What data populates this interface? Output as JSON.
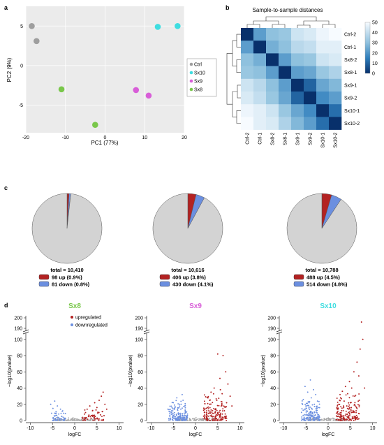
{
  "panel_labels": {
    "a": "a",
    "b": "b",
    "c": "c",
    "d": "d"
  },
  "chart_data": [
    {
      "id": "pca",
      "type": "scatter",
      "xlabel": "PC1 (77%)",
      "ylabel": "PC2 (9%)",
      "xlim": [
        -20,
        20
      ],
      "ylim": [
        -8.5,
        7.5
      ],
      "xticks": [
        "-20",
        "-10",
        "0",
        "10",
        "20"
      ],
      "yticks": [
        "-5",
        "0",
        "5"
      ],
      "xtick_values": [
        -20,
        -10,
        0,
        10,
        20
      ],
      "ytick_values": [
        -5,
        0,
        5
      ],
      "grid": true,
      "legend_position": "right",
      "series": [
        {
          "name": "Ctrl",
          "color": "#9e9e9e",
          "points": [
            [
              -18.5,
              5.0
            ],
            [
              -17.3,
              3.1
            ]
          ]
        },
        {
          "name": "Sx10",
          "color": "#3fdde0",
          "points": [
            [
              13.3,
              4.9
            ],
            [
              18.3,
              5.0
            ]
          ]
        },
        {
          "name": "Sx9",
          "color": "#d85ed8",
          "points": [
            [
              7.8,
              -3.1
            ],
            [
              11.0,
              -3.8
            ]
          ]
        },
        {
          "name": "Sx8",
          "color": "#79c74a",
          "points": [
            [
              -11.0,
              -3.0
            ],
            [
              -2.5,
              -7.5
            ]
          ]
        }
      ]
    },
    {
      "id": "heatmap",
      "type": "heatmap",
      "title": "Sample-to-sample distances",
      "row_labels": [
        "Ctrl-2",
        "Ctrl-1",
        "Sx8-2",
        "Sx8-1",
        "Sx9-1",
        "Sx9-2",
        "Sx10-1",
        "Sx10-2"
      ],
      "col_labels": [
        "Ctrl-2",
        "Ctrl-1",
        "Sx8-2",
        "Sx8-1",
        "Sx9-1",
        "Sx9-2",
        "Sx10-1",
        "Sx10-2"
      ],
      "colorbar_ticks": [
        "50",
        "40",
        "30",
        "20",
        "10",
        "0"
      ],
      "colorbar_range": [
        0,
        50
      ],
      "values": [
        [
          0,
          22,
          30,
          32,
          42,
          44,
          48,
          50
        ],
        [
          22,
          0,
          26,
          30,
          38,
          40,
          46,
          46
        ],
        [
          30,
          26,
          0,
          22,
          30,
          32,
          42,
          44
        ],
        [
          32,
          30,
          22,
          0,
          22,
          24,
          32,
          36
        ],
        [
          42,
          38,
          30,
          22,
          0,
          10,
          24,
          28
        ],
        [
          44,
          40,
          32,
          24,
          10,
          0,
          18,
          22
        ],
        [
          48,
          46,
          42,
          32,
          24,
          18,
          0,
          12
        ],
        [
          50,
          46,
          44,
          36,
          28,
          22,
          12,
          0
        ]
      ]
    },
    {
      "id": "pie-sx8",
      "type": "pie",
      "title": "Sx8",
      "title_color": "#79c74a",
      "slices": [
        {
          "name": "up",
          "value": 98,
          "color": "#b32222"
        },
        {
          "name": "down",
          "value": 81,
          "color": "#6b8fe0"
        },
        {
          "name": "unchanged",
          "value": 10231,
          "color": "#d3d3d3"
        }
      ],
      "total_label": "total = 10,410",
      "up_label": "98 up (0.9%)",
      "down_label": "81 down (0.8%)"
    },
    {
      "id": "pie-sx9",
      "type": "pie",
      "title": "Sx9",
      "title_color": "#d85ed8",
      "slices": [
        {
          "name": "up",
          "value": 406,
          "color": "#b32222"
        },
        {
          "name": "down",
          "value": 430,
          "color": "#6b8fe0"
        },
        {
          "name": "unchanged",
          "value": 9780,
          "color": "#d3d3d3"
        }
      ],
      "total_label": "total = 10,616",
      "up_label": "406 up (3.8%)",
      "down_label": "430 down (4.1%)"
    },
    {
      "id": "pie-sx10",
      "type": "pie",
      "title": "Sx10",
      "title_color": "#3fdde0",
      "slices": [
        {
          "name": "up",
          "value": 488,
          "color": "#b32222"
        },
        {
          "name": "down",
          "value": 514,
          "color": "#6b8fe0"
        },
        {
          "name": "unchanged",
          "value": 9786,
          "color": "#d3d3d3"
        }
      ],
      "total_label": "total = 10,788",
      "up_label": "488 up (4.5%)",
      "down_label": "514 down (4.8%)"
    },
    {
      "id": "volcano-sx8",
      "type": "scatter",
      "title": "Sx8",
      "title_color": "#79c74a",
      "xlabel": "logFC",
      "ylabel": "−log10(pvalue)",
      "xlim": [
        -11,
        11
      ],
      "ylim": [
        0,
        105
      ],
      "xticks": [
        "-10",
        "-5",
        "0",
        "5",
        "10"
      ],
      "yticks": [
        "0",
        "20",
        "40",
        "60",
        "80",
        "100"
      ],
      "yticks_upper": [
        "190",
        "200"
      ],
      "legend": [
        "upregulated",
        "downregulated"
      ],
      "legend_colors": [
        "#b32222",
        "#6b8fe0"
      ],
      "up_points": [
        [
          2.2,
          8
        ],
        [
          2.8,
          14
        ],
        [
          3.4,
          18
        ],
        [
          4.0,
          12
        ],
        [
          4.5,
          22
        ],
        [
          5.0,
          16
        ],
        [
          5.5,
          25
        ],
        [
          6.0,
          30
        ],
        [
          6.4,
          35
        ],
        [
          6.8,
          20
        ],
        [
          3.8,
          6
        ],
        [
          5.2,
          9
        ],
        [
          4.4,
          4
        ],
        [
          6.2,
          11
        ],
        [
          2.5,
          3
        ],
        [
          3.1,
          5
        ],
        [
          5.8,
          7
        ],
        [
          7.2,
          14
        ],
        [
          6.6,
          6
        ],
        [
          4.8,
          13
        ]
      ],
      "down_points": [
        [
          -2.5,
          9
        ],
        [
          -3.2,
          14
        ],
        [
          -3.9,
          18
        ],
        [
          -4.5,
          24
        ],
        [
          -2.9,
          5
        ],
        [
          -3.6,
          8
        ],
        [
          -4.2,
          11
        ],
        [
          -4.9,
          15
        ],
        [
          -2.2,
          3
        ],
        [
          -3.0,
          2
        ],
        [
          -3.8,
          4
        ],
        [
          -4.6,
          6
        ],
        [
          -5.2,
          9
        ],
        [
          -5.4,
          20
        ],
        [
          -2.7,
          12
        ]
      ],
      "ns_range": [
        -4.5,
        4.5,
        4
      ]
    },
    {
      "id": "volcano-sx9",
      "type": "scatter",
      "title": "Sx9",
      "title_color": "#d85ed8",
      "xlabel": "logFC",
      "ylabel": "−log10(pvalue)",
      "xlim": [
        -11,
        11
      ],
      "ylim": [
        0,
        105
      ],
      "xticks": [
        "-10",
        "-5",
        "0",
        "5",
        "10"
      ],
      "yticks": [
        "0",
        "20",
        "40",
        "60",
        "80",
        "100"
      ],
      "yticks_upper": [
        "190",
        "200"
      ],
      "up_points": [
        [
          5.0,
          82
        ],
        [
          6.2,
          80
        ],
        [
          6.8,
          60
        ],
        [
          5.5,
          52
        ],
        [
          7.3,
          45
        ],
        [
          4.2,
          40
        ],
        [
          3.5,
          35
        ],
        [
          6.0,
          33
        ],
        [
          2.8,
          28
        ],
        [
          4.8,
          25
        ],
        [
          7.0,
          22
        ],
        [
          3.2,
          20
        ],
        [
          5.8,
          18
        ],
        [
          2.4,
          15
        ],
        [
          4.4,
          14
        ],
        [
          6.5,
          12
        ],
        [
          2.1,
          10
        ],
        [
          3.8,
          9
        ],
        [
          5.2,
          8
        ],
        [
          2.6,
          6
        ],
        [
          4.0,
          5
        ],
        [
          7.8,
          30
        ],
        [
          8.2,
          18
        ],
        [
          3.0,
          12
        ],
        [
          5.6,
          38
        ]
      ],
      "down_points": [
        [
          -3.0,
          32
        ],
        [
          -4.2,
          28
        ],
        [
          -2.8,
          25
        ],
        [
          -5.0,
          22
        ],
        [
          -3.6,
          20
        ],
        [
          -2.4,
          18
        ],
        [
          -4.6,
          16
        ],
        [
          -3.3,
          14
        ],
        [
          -5.4,
          12
        ],
        [
          -2.2,
          10
        ],
        [
          -3.9,
          9
        ],
        [
          -4.8,
          7
        ],
        [
          -2.6,
          6
        ],
        [
          -3.5,
          5
        ],
        [
          -5.8,
          9
        ],
        [
          -6.2,
          14
        ],
        [
          -2.0,
          4
        ],
        [
          -4.0,
          3
        ],
        [
          -1.8,
          8
        ],
        [
          -5.2,
          4
        ]
      ],
      "ns_range": [
        -4.5,
        4.5,
        4
      ]
    },
    {
      "id": "volcano-sx10",
      "type": "scatter",
      "title": "Sx10",
      "title_color": "#3fdde0",
      "xlabel": "logFC",
      "ylabel": "−log10(pvalue)",
      "xlim": [
        -11,
        11
      ],
      "ylim": [
        0,
        105
      ],
      "xticks": [
        "-10",
        "-5",
        "0",
        "5",
        "10"
      ],
      "yticks": [
        "0",
        "20",
        "40",
        "60",
        "80",
        "100"
      ],
      "yticks_upper": [
        "190",
        "200"
      ],
      "upper_up_points": [
        [
          7.5,
          196
        ]
      ],
      "up_points": [
        [
          7.8,
          100
        ],
        [
          7.2,
          88
        ],
        [
          6.5,
          72
        ],
        [
          5.8,
          60
        ],
        [
          6.9,
          55
        ],
        [
          4.8,
          48
        ],
        [
          3.9,
          42
        ],
        [
          5.3,
          40
        ],
        [
          3.2,
          36
        ],
        [
          4.4,
          33
        ],
        [
          6.0,
          30
        ],
        [
          2.8,
          28
        ],
        [
          3.6,
          24
        ],
        [
          5.0,
          22
        ],
        [
          2.4,
          20
        ],
        [
          4.2,
          18
        ],
        [
          6.4,
          16
        ],
        [
          2.1,
          14
        ],
        [
          3.0,
          12
        ],
        [
          4.6,
          10
        ],
        [
          2.6,
          8
        ],
        [
          3.4,
          6
        ],
        [
          5.6,
          12
        ],
        [
          7.0,
          25
        ],
        [
          8.2,
          40
        ]
      ],
      "down_points": [
        [
          -4.0,
          50
        ],
        [
          -5.2,
          42
        ],
        [
          -3.3,
          38
        ],
        [
          -4.6,
          35
        ],
        [
          -2.8,
          32
        ],
        [
          -3.8,
          28
        ],
        [
          -5.6,
          26
        ],
        [
          -2.4,
          24
        ],
        [
          -4.3,
          22
        ],
        [
          -3.1,
          20
        ],
        [
          -5.0,
          18
        ],
        [
          -2.2,
          16
        ],
        [
          -3.6,
          14
        ],
        [
          -4.8,
          12
        ],
        [
          -2.6,
          10
        ],
        [
          -6.0,
          10
        ],
        [
          -3.4,
          8
        ],
        [
          -4.4,
          6
        ],
        [
          -2.0,
          5
        ],
        [
          -5.4,
          4
        ]
      ],
      "ns_range": [
        -4.5,
        4.5,
        4
      ]
    }
  ]
}
